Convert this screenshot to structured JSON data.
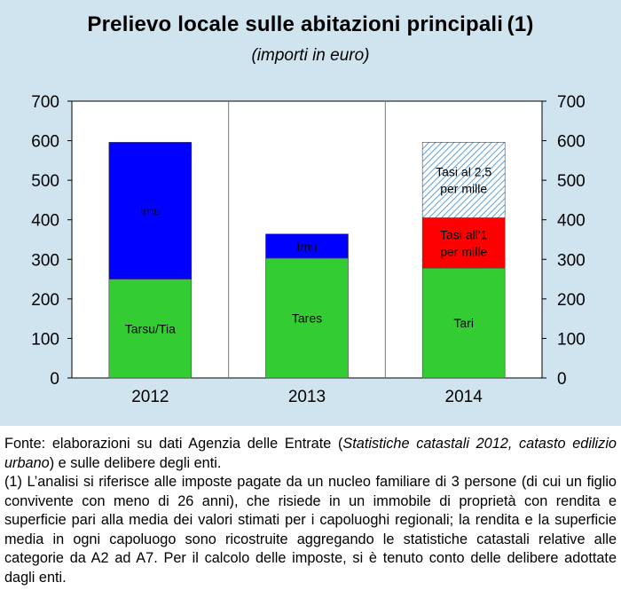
{
  "title": {
    "main": "Prelievo locale sulle abitazioni principali",
    "note_ref": "(1)",
    "subtitle": "(importi in euro)"
  },
  "chart_data": {
    "type": "bar",
    "stacked": true,
    "title": "Prelievo locale sulle abitazioni principali (1)",
    "subtitle": "(importi in euro)",
    "categories": [
      "2012",
      "2013",
      "2014"
    ],
    "ylim": [
      0,
      700
    ],
    "yticks": [
      0,
      100,
      200,
      300,
      400,
      500,
      600,
      700
    ],
    "y_axis_both_sides": true,
    "grid": "vertical",
    "segments": [
      [
        {
          "label": "Tarsu/Tia",
          "value": 250,
          "color": "#33cc33",
          "pattern": "solid"
        },
        {
          "label": "Imu",
          "value": 346,
          "color": "#0000ff",
          "pattern": "solid"
        }
      ],
      [
        {
          "label": "Tares",
          "value": 303,
          "color": "#33cc33",
          "pattern": "solid"
        },
        {
          "label": "Imu",
          "value": 61,
          "color": "#0000ff",
          "pattern": "solid"
        }
      ],
      [
        {
          "label": "Tari",
          "value": 278,
          "color": "#33cc33",
          "pattern": "solid"
        },
        {
          "label": "Tasi all'1 per mille",
          "label_lines": [
            "Tasi all'1",
            "per mille"
          ],
          "value": 127,
          "color": "#ff0000",
          "pattern": "solid"
        },
        {
          "label": "Tasi al 2,5 per mille",
          "label_lines": [
            "Tasi al 2,5",
            "per mille"
          ],
          "value": 191,
          "color": "#66aadd",
          "pattern": "hatch"
        }
      ]
    ]
  },
  "footer": {
    "source_prefix": "Fonte: elaborazioni su dati Agenzia delle Entrate (",
    "source_italic": "Statistiche catastali 2012, catasto edilizio urbano",
    "source_suffix": ") e sulle delibere degli enti.",
    "note": "(1) L’analisi si riferisce alle imposte pagate da un nucleo familiare di 3 persone (di cui un figlio convivente con meno di 26 anni), che risiede in un immobile di proprietà con rendita e superficie pari alla media dei valori stimati per i capoluoghi regionali; la rendita e la superficie media in ogni capoluogo sono ricostruite aggregando le statistiche catastali relative alle categorie da A2 ad A7. Per il calcolo delle imposte, si è tenuto conto delle delibere adottate dagli enti."
  }
}
